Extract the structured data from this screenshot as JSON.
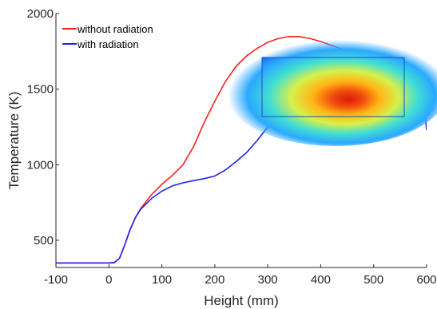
{
  "chart_data": {
    "type": "line",
    "title": "",
    "xlabel": "Height (mm)",
    "ylabel": "Temperature (K)",
    "xlim": [
      -100,
      600
    ],
    "ylim": [
      320,
      2000
    ],
    "xticks": [
      -100,
      0,
      100,
      200,
      300,
      400,
      500,
      600
    ],
    "xtick_labels": [
      "-100",
      "0",
      "100",
      "200",
      "300",
      "400",
      "500",
      "600"
    ],
    "yticks": [
      500,
      1000,
      1500,
      2000
    ],
    "ytick_labels": [
      "500",
      "1000",
      "1500",
      "2000"
    ],
    "grid": false,
    "legend_position": "top-left",
    "inset": {
      "type": "heatmap",
      "placement": "upper-right, over the curves",
      "colormap": "jet"
    },
    "series": [
      {
        "name": "without radiation",
        "color": "#ff2020",
        "x": [
          -100,
          0,
          10,
          20,
          30,
          40,
          50,
          60,
          80,
          100,
          120,
          140,
          160,
          180,
          200,
          220,
          240,
          260,
          280,
          300,
          320,
          340,
          360,
          380,
          400,
          420,
          440,
          460,
          480,
          500,
          520,
          540,
          560,
          580,
          590,
          595,
          600
        ],
        "y": [
          350,
          350,
          352,
          380,
          470,
          570,
          650,
          710,
          800,
          870,
          930,
          1000,
          1120,
          1280,
          1420,
          1550,
          1650,
          1720,
          1770,
          1810,
          1835,
          1848,
          1847,
          1835,
          1815,
          1790,
          1765,
          1740,
          1715,
          1695,
          1675,
          1655,
          1635,
          1610,
          1580,
          1540,
          1400
        ]
      },
      {
        "name": "with radiation",
        "color": "#2020ee",
        "x": [
          -100,
          0,
          10,
          20,
          30,
          40,
          50,
          60,
          80,
          100,
          120,
          140,
          160,
          180,
          200,
          220,
          240,
          260,
          280,
          300,
          320,
          340,
          360,
          380,
          400,
          420,
          440,
          460,
          480,
          500,
          520,
          540,
          560,
          580,
          590,
          595,
          600
        ],
        "y": [
          350,
          350,
          352,
          380,
          470,
          570,
          650,
          705,
          775,
          825,
          860,
          880,
          895,
          908,
          925,
          965,
          1020,
          1080,
          1160,
          1250,
          1330,
          1400,
          1470,
          1520,
          1560,
          1580,
          1582,
          1578,
          1570,
          1562,
          1550,
          1535,
          1515,
          1490,
          1460,
          1410,
          1230
        ]
      }
    ]
  }
}
